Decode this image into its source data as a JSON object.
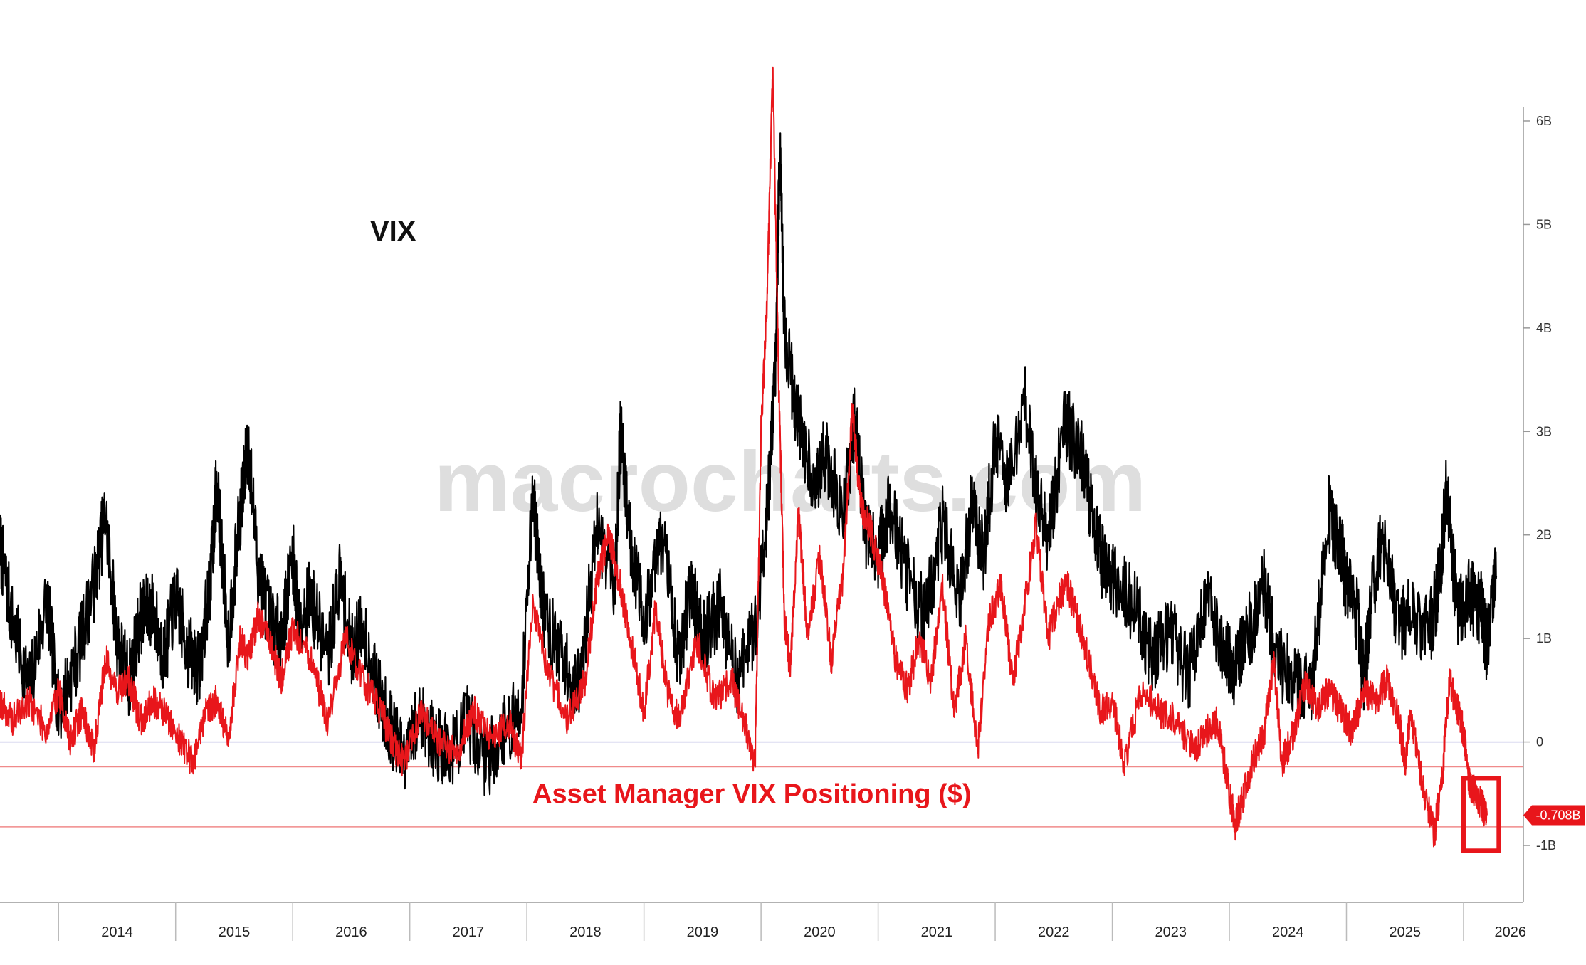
{
  "chart_data": {
    "type": "line",
    "watermark": "macrocharts.com",
    "title_vix": "VIX",
    "title_positioning": "Asset Manager VIX Positioning ($)",
    "x_ticks": [
      "2014",
      "2015",
      "2016",
      "2017",
      "2018",
      "2019",
      "2020",
      "2021",
      "2022",
      "2023",
      "2024",
      "2025",
      "2026"
    ],
    "xlim": [
      2013.5,
      2026.45
    ],
    "y_ticks": [
      "6B",
      "5B",
      "4B",
      "3B",
      "2B",
      "1B",
      "0",
      "-1B"
    ],
    "ylim": [
      -1.55,
      6.55
    ],
    "last_value_label": "-0.708B",
    "reference_lines": [
      {
        "y": 0.0,
        "color": "#b9b9e0"
      },
      {
        "y": -0.24,
        "color": "#f08a8a"
      },
      {
        "y": -0.82,
        "color": "#f08a8a"
      }
    ],
    "highlight_range": {
      "x": [
        2026.0,
        2026.3
      ],
      "y": [
        -1.05,
        -0.35
      ],
      "color": "#e8161b"
    },
    "series": [
      {
        "color": "#000000",
        "x": [
          2013.5,
          2013.6,
          2013.75,
          2013.9,
          2014.0,
          2014.15,
          2014.3,
          2014.4,
          2014.5,
          2014.6,
          2014.7,
          2014.8,
          2014.9,
          2015.0,
          2015.1,
          2015.2,
          2015.3,
          2015.35,
          2015.45,
          2015.55,
          2015.62,
          2015.7,
          2015.8,
          2015.9,
          2016.0,
          2016.05,
          2016.15,
          2016.3,
          2016.4,
          2016.5,
          2016.6,
          2016.75,
          2016.85,
          2016.95,
          2017.1,
          2017.2,
          2017.35,
          2017.5,
          2017.65,
          2017.8,
          2017.95,
          2018.05,
          2018.1,
          2018.15,
          2018.3,
          2018.45,
          2018.6,
          2018.75,
          2018.8,
          2018.9,
          2019.0,
          2019.15,
          2019.3,
          2019.4,
          2019.5,
          2019.65,
          2019.8,
          2019.95,
          2020.05,
          2020.12,
          2020.16,
          2020.2,
          2020.3,
          2020.45,
          2020.55,
          2020.7,
          2020.8,
          2020.9,
          2021.0,
          2021.1,
          2021.25,
          2021.4,
          2021.55,
          2021.7,
          2021.8,
          2021.9,
          2022.0,
          2022.1,
          2022.25,
          2022.35,
          2022.45,
          2022.6,
          2022.75,
          2022.85,
          2022.95,
          2023.05,
          2023.2,
          2023.35,
          2023.5,
          2023.65,
          2023.8,
          2023.95,
          2024.05,
          2024.15,
          2024.3,
          2024.4,
          2024.55,
          2024.7,
          2024.85,
          2024.95,
          2025.0,
          2025.1,
          2025.15,
          2025.2,
          2025.3,
          2025.45,
          2025.55,
          2025.7,
          2025.8,
          2025.85,
          2025.95,
          2026.05,
          2026.15,
          2026.2,
          2026.28
        ],
        "y": [
          1.9,
          1.2,
          0.5,
          1.4,
          0.3,
          0.8,
          1.5,
          2.2,
          1.0,
          0.6,
          1.2,
          1.3,
          0.8,
          1.4,
          0.9,
          0.7,
          1.6,
          2.5,
          1.0,
          2.2,
          2.9,
          1.7,
          1.2,
          1.0,
          1.8,
          1.2,
          1.4,
          0.8,
          1.6,
          0.9,
          1.1,
          0.4,
          0.1,
          -0.2,
          0.3,
          0.0,
          -0.1,
          0.2,
          -0.2,
          0.1,
          0.3,
          2.4,
          1.8,
          1.2,
          0.8,
          0.5,
          2.1,
          1.5,
          3.0,
          1.8,
          1.2,
          2.0,
          0.8,
          1.5,
          1.0,
          1.3,
          0.6,
          1.1,
          2.2,
          3.5,
          5.7,
          4.0,
          3.2,
          2.5,
          2.8,
          2.2,
          3.1,
          2.0,
          1.8,
          2.3,
          1.6,
          1.2,
          2.1,
          1.4,
          2.3,
          1.8,
          2.9,
          2.5,
          3.3,
          2.4,
          2.0,
          3.1,
          2.7,
          2.0,
          1.6,
          1.5,
          1.3,
          0.8,
          1.1,
          0.6,
          1.4,
          0.9,
          0.7,
          1.0,
          1.5,
          0.8,
          0.6,
          0.5,
          2.2,
          1.9,
          1.5,
          1.2,
          0.5,
          1.3,
          2.0,
          1.1,
          1.3,
          1.0,
          1.6,
          2.5,
          1.2,
          1.4,
          1.3,
          0.9,
          1.6
        ]
      },
      {
        "color": "#e8161b",
        "x": [
          2013.5,
          2013.6,
          2013.75,
          2013.9,
          2014.0,
          2014.1,
          2014.2,
          2014.3,
          2014.4,
          2014.5,
          2014.6,
          2014.7,
          2014.8,
          2014.9,
          2015.0,
          2015.15,
          2015.25,
          2015.35,
          2015.45,
          2015.55,
          2015.62,
          2015.7,
          2015.8,
          2015.9,
          2016.0,
          2016.15,
          2016.3,
          2016.45,
          2016.6,
          2016.75,
          2016.85,
          2016.95,
          2017.1,
          2017.25,
          2017.4,
          2017.55,
          2017.7,
          2017.85,
          2017.95,
          2018.05,
          2018.2,
          2018.35,
          2018.5,
          2018.6,
          2018.7,
          2018.8,
          2018.9,
          2019.0,
          2019.1,
          2019.2,
          2019.3,
          2019.45,
          2019.6,
          2019.75,
          2019.85,
          2019.95,
          2020.0,
          2020.05,
          2020.1,
          2020.15,
          2020.2,
          2020.25,
          2020.32,
          2020.4,
          2020.5,
          2020.6,
          2020.7,
          2020.78,
          2020.85,
          2020.95,
          2021.05,
          2021.15,
          2021.25,
          2021.35,
          2021.45,
          2021.55,
          2021.65,
          2021.75,
          2021.85,
          2021.95,
          2022.05,
          2022.15,
          2022.25,
          2022.35,
          2022.45,
          2022.55,
          2022.62,
          2022.7,
          2022.8,
          2022.9,
          2023.0,
          2023.1,
          2023.25,
          2023.4,
          2023.55,
          2023.7,
          2023.8,
          2023.9,
          2024.0,
          2024.05,
          2024.1,
          2024.2,
          2024.3,
          2024.38,
          2024.45,
          2024.55,
          2024.65,
          2024.75,
          2024.85,
          2024.95,
          2025.05,
          2025.15,
          2025.25,
          2025.35,
          2025.45,
          2025.5,
          2025.55,
          2025.65,
          2025.75,
          2025.82,
          2025.88,
          2025.95,
          2026.0,
          2026.05,
          2026.1,
          2026.15,
          2026.2
        ],
        "y": [
          0.4,
          0.2,
          0.4,
          0.1,
          0.5,
          0.0,
          0.3,
          -0.1,
          0.8,
          0.5,
          0.6,
          0.2,
          0.4,
          0.3,
          0.1,
          -0.2,
          0.3,
          0.4,
          0.0,
          1.0,
          0.8,
          1.2,
          1.0,
          0.6,
          1.1,
          0.8,
          0.2,
          1.0,
          0.6,
          0.3,
          0.0,
          -0.2,
          0.3,
          0.0,
          -0.1,
          0.3,
          0.0,
          0.2,
          -0.2,
          1.3,
          0.6,
          0.2,
          0.6,
          1.6,
          2.0,
          1.5,
          0.9,
          0.3,
          1.3,
          0.5,
          0.2,
          1.0,
          0.4,
          0.6,
          0.2,
          -0.2,
          3.0,
          4.2,
          6.5,
          3.5,
          1.2,
          0.7,
          2.2,
          1.0,
          1.8,
          0.8,
          1.6,
          3.2,
          2.3,
          2.0,
          1.5,
          0.8,
          0.5,
          1.0,
          0.6,
          1.5,
          0.3,
          1.0,
          -0.1,
          1.2,
          1.5,
          0.6,
          1.3,
          2.1,
          1.0,
          1.4,
          1.5,
          1.2,
          0.8,
          0.3,
          0.4,
          -0.2,
          0.5,
          0.3,
          0.2,
          -0.1,
          0.1,
          0.2,
          -0.5,
          -0.8,
          -0.6,
          -0.2,
          0.1,
          0.8,
          -0.2,
          0.1,
          0.6,
          0.3,
          0.5,
          0.3,
          0.1,
          0.5,
          0.4,
          0.6,
          0.2,
          -0.2,
          0.3,
          -0.4,
          -0.9,
          -0.3,
          0.6,
          0.3,
          0.1,
          -0.4,
          -0.5,
          -0.6,
          -0.708
        ]
      }
    ]
  }
}
